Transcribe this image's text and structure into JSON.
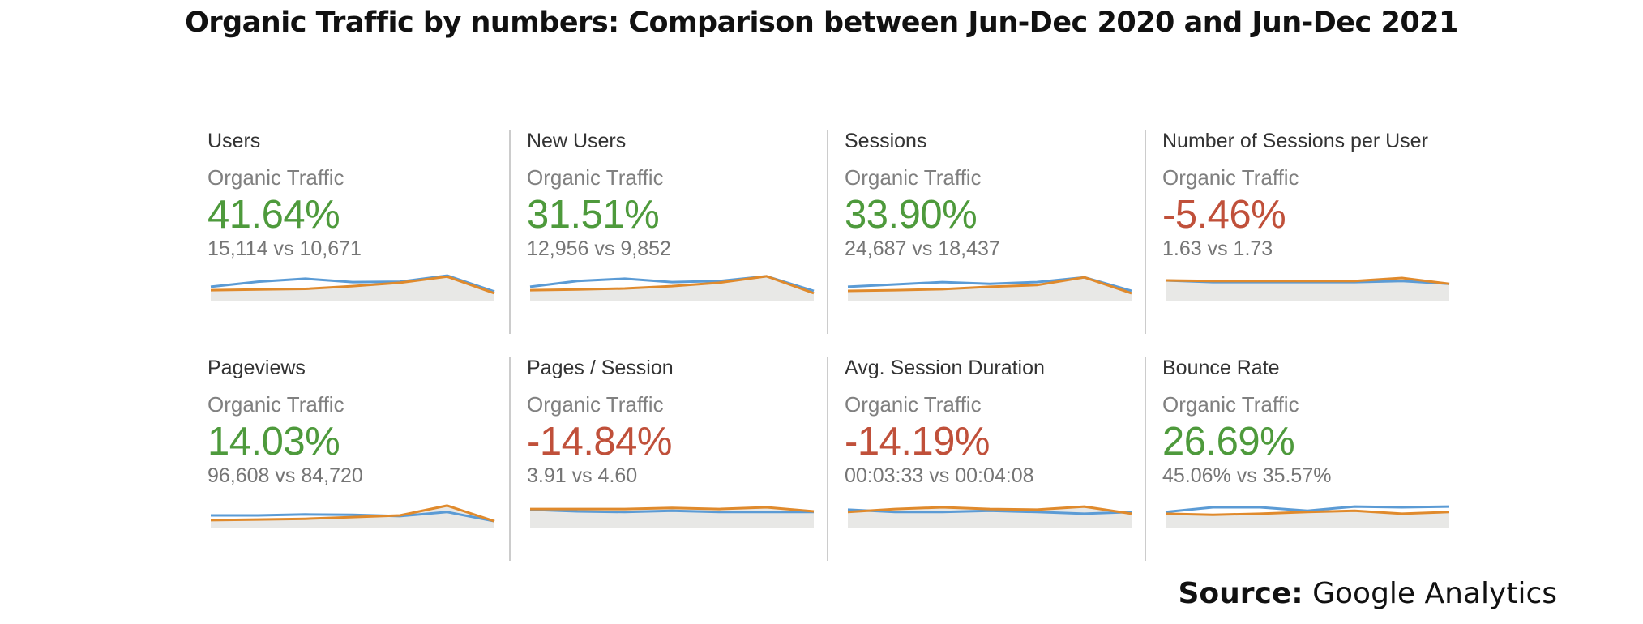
{
  "title": "Organic Traffic by numbers: Comparison between Jun-Dec 2020 and Jun-Dec 2021",
  "source": {
    "label": "Source:",
    "value": "Google Analytics"
  },
  "colors": {
    "positive": "#4e9a3c",
    "negative": "#c0503a",
    "current_series": "#5b9bd5",
    "previous_series": "#e08a2c",
    "area_fill": "#e8e8e6"
  },
  "chart_data": [
    {
      "type": "line",
      "metric": "Users",
      "segment": "Organic Traffic",
      "change": "41.64%",
      "comparison": "15,114 vs 10,671",
      "current": 15114,
      "previous": 10671,
      "trend": "positive",
      "series": [
        {
          "values": [
            0.43,
            0.58,
            0.67,
            0.57,
            0.58,
            0.76,
            0.29
          ]
        },
        {
          "values": [
            0.33,
            0.35,
            0.37,
            0.45,
            0.55,
            0.73,
            0.24
          ]
        }
      ],
      "ylim": [
        0,
        1
      ]
    },
    {
      "type": "line",
      "metric": "New Users",
      "segment": "Organic Traffic",
      "change": "31.51%",
      "comparison": "12,956 vs 9,852",
      "current": 12956,
      "previous": 9852,
      "trend": "positive",
      "series": [
        {
          "values": [
            0.43,
            0.6,
            0.67,
            0.57,
            0.6,
            0.74,
            0.31
          ]
        },
        {
          "values": [
            0.33,
            0.35,
            0.38,
            0.45,
            0.55,
            0.74,
            0.24
          ]
        }
      ],
      "ylim": [
        0,
        1
      ]
    },
    {
      "type": "line",
      "metric": "Sessions",
      "segment": "Organic Traffic",
      "change": "33.90%",
      "comparison": "24,687 vs 18,437",
      "current": 24687,
      "previous": 18437,
      "trend": "positive",
      "series": [
        {
          "values": [
            0.43,
            0.5,
            0.57,
            0.52,
            0.57,
            0.71,
            0.31
          ]
        },
        {
          "values": [
            0.31,
            0.33,
            0.36,
            0.43,
            0.48,
            0.71,
            0.24
          ]
        }
      ],
      "ylim": [
        0,
        1
      ]
    },
    {
      "type": "line",
      "metric": "Number of Sessions per User",
      "segment": "Organic Traffic",
      "change": "-5.46%",
      "comparison": "1.63 vs 1.73",
      "current": 1.63,
      "previous": 1.73,
      "trend": "negative",
      "series": [
        {
          "values": [
            0.62,
            0.57,
            0.57,
            0.57,
            0.57,
            0.6,
            0.52
          ]
        },
        {
          "values": [
            0.62,
            0.6,
            0.6,
            0.6,
            0.6,
            0.69,
            0.52
          ]
        }
      ],
      "ylim": [
        0,
        1
      ]
    },
    {
      "type": "line",
      "metric": "Pageviews",
      "segment": "Organic Traffic",
      "change": "14.03%",
      "comparison": "96,608 vs 84,720",
      "current": 96608,
      "previous": 84720,
      "trend": "positive",
      "series": [
        {
          "values": [
            0.38,
            0.38,
            0.41,
            0.4,
            0.36,
            0.48,
            0.21
          ]
        },
        {
          "values": [
            0.24,
            0.26,
            0.28,
            0.33,
            0.38,
            0.67,
            0.21
          ]
        }
      ],
      "ylim": [
        0,
        1
      ]
    },
    {
      "type": "line",
      "metric": "Pages / Session",
      "segment": "Organic Traffic",
      "change": "-14.84%",
      "comparison": "3.91 vs 4.60",
      "current": 3.91,
      "previous": 4.6,
      "trend": "negative",
      "series": [
        {
          "values": [
            0.55,
            0.5,
            0.48,
            0.52,
            0.48,
            0.48,
            0.48
          ]
        },
        {
          "values": [
            0.57,
            0.57,
            0.57,
            0.6,
            0.57,
            0.62,
            0.5
          ]
        }
      ],
      "ylim": [
        0,
        1
      ]
    },
    {
      "type": "line",
      "metric": "Avg. Session Duration",
      "segment": "Organic Traffic",
      "change": "-14.19%",
      "comparison": "00:03:33 vs 00:04:08",
      "current": "00:03:33",
      "previous": "00:04:08",
      "trend": "negative",
      "series": [
        {
          "values": [
            0.55,
            0.48,
            0.48,
            0.52,
            0.48,
            0.43,
            0.48
          ]
        },
        {
          "values": [
            0.48,
            0.57,
            0.62,
            0.57,
            0.55,
            0.64,
            0.43
          ]
        }
      ],
      "ylim": [
        0,
        1
      ]
    },
    {
      "type": "line",
      "metric": "Bounce Rate",
      "segment": "Organic Traffic",
      "change": "26.69%",
      "comparison": "45.06% vs 35.57%",
      "current": "45.06%",
      "previous": "35.57%",
      "trend": "positive",
      "series": [
        {
          "values": [
            0.48,
            0.62,
            0.62,
            0.52,
            0.64,
            0.62,
            0.64
          ]
        },
        {
          "values": [
            0.43,
            0.4,
            0.43,
            0.48,
            0.52,
            0.43,
            0.48
          ]
        }
      ],
      "ylim": [
        0,
        1
      ]
    }
  ]
}
